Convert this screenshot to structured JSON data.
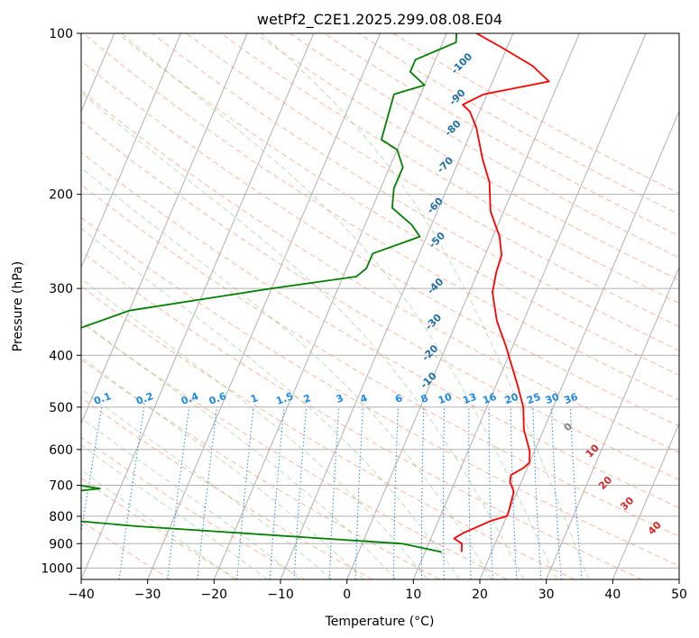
{
  "chart_data": {
    "type": "line",
    "title": "wetPf2_C2E1.2025.299.08.08.E04",
    "xlabel": "Temperature (°C)",
    "ylabel": "Pressure (hPa)",
    "xlim": [
      -40,
      50
    ],
    "ylim": [
      1050,
      100
    ],
    "yscale": "log",
    "skew": 35,
    "xticks": [
      -40,
      -30,
      -20,
      -10,
      0,
      10,
      20,
      30,
      40,
      50
    ],
    "yticks": [
      100,
      200,
      300,
      400,
      500,
      600,
      700,
      800,
      900,
      1000
    ],
    "grid": true,
    "series": [
      {
        "role": "temperature",
        "color": "#ff0000",
        "points": [
          [
            15.5,
            933
          ],
          [
            15.0,
            900
          ],
          [
            13.5,
            880
          ],
          [
            14.5,
            860
          ],
          [
            18.0,
            815
          ],
          [
            20.0,
            800
          ],
          [
            20.0,
            785
          ],
          [
            19.8,
            760
          ],
          [
            19.5,
            720
          ],
          [
            18.3,
            690
          ],
          [
            18.0,
            670
          ],
          [
            19.4,
            650
          ],
          [
            20.0,
            635
          ],
          [
            19.3,
            605
          ],
          [
            17.0,
            550
          ],
          [
            15.5,
            500
          ],
          [
            13.5,
            460
          ],
          [
            11.5,
            425
          ],
          [
            9.0,
            385
          ],
          [
            6.0,
            345
          ],
          [
            3.5,
            305
          ],
          [
            2.8,
            280
          ],
          [
            2.5,
            260
          ],
          [
            1.0,
            240
          ],
          [
            -2.0,
            215
          ],
          [
            -4.0,
            190
          ],
          [
            -6.5,
            172
          ],
          [
            -9.5,
            150
          ],
          [
            -11.5,
            140
          ],
          [
            -13.0,
            136
          ],
          [
            -10.5,
            130
          ],
          [
            -1.5,
            123
          ],
          [
            -5.0,
            115
          ],
          [
            -11.0,
            106
          ],
          [
            -15.5,
            100
          ]
        ]
      },
      {
        "role": "dewpoint",
        "color": "#008000",
        "points": [
          [
            12.5,
            933
          ],
          [
            6.0,
            900
          ],
          [
            -35.0,
            835
          ],
          [
            -45.0,
            815
          ],
          [
            -65.0,
            765
          ],
          [
            -56.0,
            740
          ],
          [
            -43.0,
            710
          ],
          [
            -55.0,
            676
          ],
          [
            -75.0,
            645
          ],
          [
            -77.0,
            640
          ],
          [
            -60.0,
            598
          ],
          [
            -53.0,
            558
          ],
          [
            -70.0,
            535
          ],
          [
            -72.0,
            530
          ],
          [
            -70.0,
            470
          ],
          [
            -72.0,
            455
          ],
          [
            -70.0,
            440
          ],
          [
            -66.0,
            400
          ],
          [
            -50.0,
            330
          ],
          [
            -30.0,
            300
          ],
          [
            -18.0,
            285
          ],
          [
            -17.0,
            275
          ],
          [
            -17.0,
            258
          ],
          [
            -11.0,
            240
          ],
          [
            -13.0,
            228
          ],
          [
            -17.0,
            212
          ],
          [
            -18.0,
            195
          ],
          [
            -18.0,
            178
          ],
          [
            -20.0,
            165
          ],
          [
            -23.0,
            158
          ],
          [
            -24.0,
            130
          ],
          [
            -20.0,
            125
          ],
          [
            -23.0,
            118
          ],
          [
            -23.0,
            112
          ],
          [
            -18.0,
            104
          ],
          [
            -18.5,
            100
          ]
        ]
      }
    ],
    "dry_adiabat_labels": [
      "-100",
      "-90",
      "-80",
      "-70",
      "-60",
      "-50",
      "-40",
      "-30",
      "-20",
      "-10",
      "0",
      "10",
      "20",
      "30",
      "40"
    ],
    "mixing_ratio_labels": [
      "0.1",
      "0.2",
      "0.4",
      "0.6",
      "1",
      "1.5",
      "2",
      "3",
      "4",
      "6",
      "8",
      "10",
      "13",
      "16",
      "20",
      "25",
      "30",
      "36"
    ]
  }
}
